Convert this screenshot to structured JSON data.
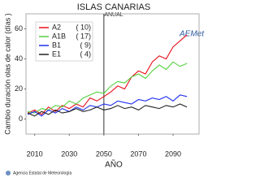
{
  "chart_data": {
    "type": "line",
    "title": "ISLAS CANARIAS",
    "subtitle": "ANUAL",
    "y_label": "Cambio duración olas de calor (días )",
    "x_label": "AÑO",
    "footer": "Agencia Estatal de Meteorología",
    "logo": "AEMet",
    "x": [
      2006,
      2010,
      2014,
      2018,
      2022,
      2026,
      2030,
      2034,
      2038,
      2042,
      2046,
      2050,
      2054,
      2058,
      2062,
      2066,
      2070,
      2074,
      2078,
      2082,
      2086,
      2090,
      2094,
      2098
    ],
    "series": [
      {
        "name": "A2",
        "members": {
          "value": 10,
          "label": "( 10)"
        },
        "color": "#e8101a",
        "values": [
          4,
          6,
          3,
          8,
          5,
          9,
          7,
          10,
          8,
          14,
          12,
          15,
          18,
          22,
          20,
          28,
          32,
          30,
          38,
          42,
          40,
          48,
          52,
          56
        ]
      },
      {
        "name": "A1B",
        "members": {
          "value": 17,
          "label": "( 17)"
        },
        "color": "#55d040",
        "values": [
          5,
          4,
          7,
          6,
          9,
          8,
          12,
          10,
          14,
          16,
          18,
          17,
          22,
          25,
          24,
          28,
          30,
          27,
          32,
          36,
          33,
          38,
          35,
          37
        ]
      },
      {
        "name": "B1",
        "members": {
          "value": 9,
          "label": "( 9)"
        },
        "color": "#2030f0",
        "values": [
          3,
          5,
          2,
          6,
          4,
          7,
          5,
          8,
          6,
          9,
          8,
          10,
          9,
          12,
          11,
          10,
          13,
          12,
          14,
          13,
          15,
          12,
          16,
          15
        ]
      },
      {
        "name": "E1",
        "members": {
          "value": 4,
          "label": "( 4)"
        },
        "color": "#222222",
        "values": [
          4,
          2,
          5,
          3,
          6,
          4,
          5,
          7,
          5,
          6,
          8,
          6,
          7,
          9,
          7,
          8,
          6,
          9,
          8,
          7,
          9,
          8,
          10,
          8
        ]
      }
    ],
    "xlim": [
      2005,
      2105
    ],
    "xticks": [
      2010,
      2030,
      2050,
      2070,
      2090
    ],
    "ylim": [
      -10,
      70
    ],
    "yticks": [
      0,
      20,
      40,
      60
    ],
    "vline": 2050
  }
}
